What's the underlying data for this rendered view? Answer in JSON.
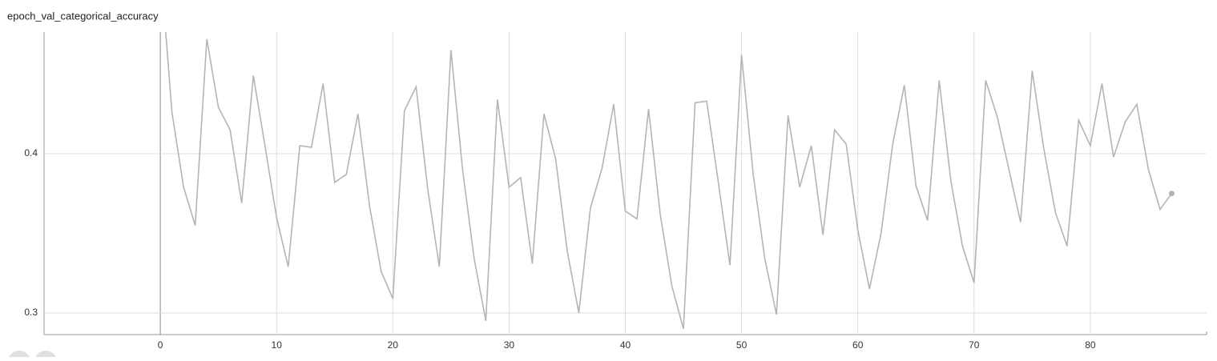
{
  "chart_data": {
    "type": "line",
    "title": "epoch_val_categorical_accuracy",
    "x": [
      0,
      1,
      2,
      3,
      4,
      5,
      6,
      7,
      8,
      9,
      10,
      11,
      12,
      13,
      14,
      15,
      16,
      17,
      18,
      19,
      20,
      21,
      22,
      23,
      24,
      25,
      26,
      27,
      28,
      29,
      30,
      31,
      32,
      33,
      34,
      35,
      36,
      37,
      38,
      39,
      40,
      41,
      42,
      43,
      44,
      45,
      46,
      47,
      48,
      49,
      50,
      51,
      52,
      53,
      54,
      55,
      56,
      57,
      58,
      59,
      60,
      61,
      62,
      63,
      64,
      65,
      66,
      67,
      68,
      69,
      70,
      71,
      72,
      73,
      74,
      75,
      76,
      77,
      78,
      79,
      80,
      81,
      82,
      83,
      84,
      85,
      86,
      87
    ],
    "series": [
      {
        "color": "#b4b4b4",
        "values": [
          0.52,
          0.426,
          0.379,
          0.355,
          0.472,
          0.429,
          0.415,
          0.369,
          0.449,
          0.405,
          0.36,
          0.329,
          0.405,
          0.404,
          0.444,
          0.382,
          0.387,
          0.425,
          0.367,
          0.326,
          0.309,
          0.427,
          0.442,
          0.378,
          0.329,
          0.465,
          0.39,
          0.334,
          0.295,
          0.434,
          0.379,
          0.385,
          0.331,
          0.425,
          0.397,
          0.339,
          0.3,
          0.366,
          0.391,
          0.431,
          0.364,
          0.359,
          0.428,
          0.362,
          0.317,
          0.29,
          0.432,
          0.433,
          0.382,
          0.33,
          0.462,
          0.387,
          0.334,
          0.299,
          0.424,
          0.379,
          0.405,
          0.349,
          0.415,
          0.406,
          0.352,
          0.315,
          0.35,
          0.406,
          0.443,
          0.38,
          0.358,
          0.446,
          0.383,
          0.342,
          0.319,
          0.446,
          0.423,
          0.39,
          0.357,
          0.452,
          0.403,
          0.363,
          0.342,
          0.421,
          0.405,
          0.444,
          0.398,
          0.42,
          0.431,
          0.39,
          0.365,
          0.375
        ]
      }
    ],
    "xlim": [
      -10,
      90
    ],
    "ylim": [
      0.2864,
      0.4764
    ],
    "xticks": [
      0,
      10,
      20,
      30,
      40,
      50,
      60,
      70,
      80
    ],
    "yticks": [
      0.3,
      0.4
    ],
    "grid": true
  }
}
